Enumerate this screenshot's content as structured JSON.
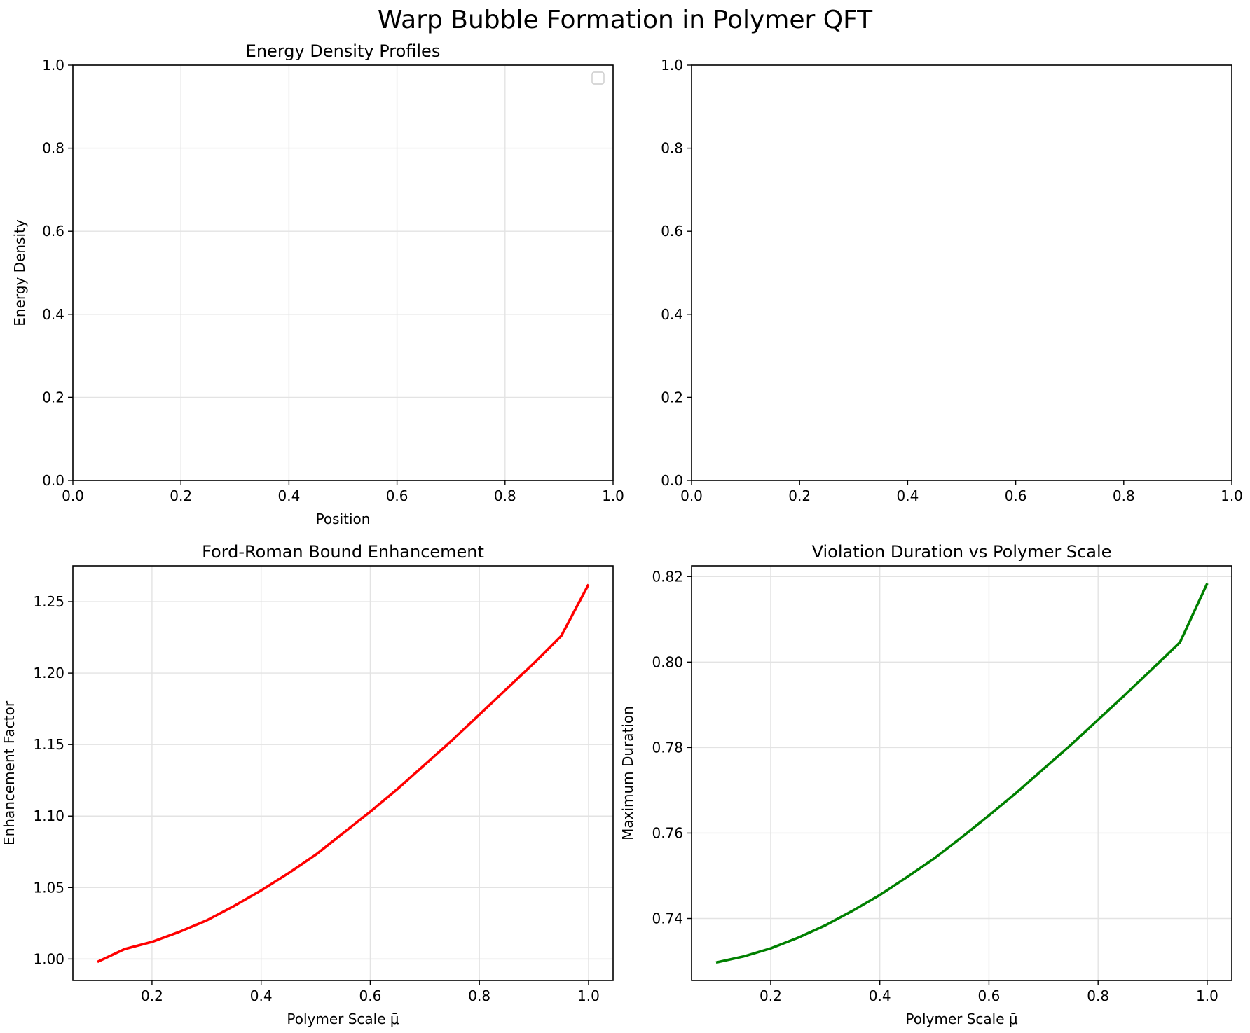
{
  "figure": {
    "suptitle": "Warp Bubble Formation in Polymer QFT"
  },
  "chart_data": [
    {
      "type": "line",
      "title": "Energy Density Profiles",
      "xlabel": "Position",
      "ylabel": "Energy Density",
      "xlim": [
        0.0,
        1.0
      ],
      "ylim": [
        0.0,
        1.0
      ],
      "xticks": [
        "0.0",
        "0.2",
        "0.4",
        "0.6",
        "0.8",
        "1.0"
      ],
      "yticks": [
        "0.0",
        "0.2",
        "0.4",
        "0.6",
        "0.8",
        "1.0"
      ],
      "grid": true,
      "legend": "top-right (empty)",
      "series": []
    },
    {
      "type": "line",
      "title": "",
      "xlabel": "",
      "ylabel": "",
      "xlim": [
        0.0,
        1.0
      ],
      "ylim": [
        0.0,
        1.0
      ],
      "xticks": [
        "0.0",
        "0.2",
        "0.4",
        "0.6",
        "0.8",
        "1.0"
      ],
      "yticks": [
        "0.0",
        "0.2",
        "0.4",
        "0.6",
        "0.8",
        "1.0"
      ],
      "grid": false,
      "series": []
    },
    {
      "type": "line",
      "title": "Ford-Roman Bound Enhancement",
      "xlabel": "Polymer Scale μ̄",
      "ylabel": "Enhancement Factor",
      "xlim": [
        0.055,
        1.045
      ],
      "ylim": [
        0.985,
        1.275
      ],
      "xticks": [
        "0.2",
        "0.4",
        "0.6",
        "0.8",
        "1.0"
      ],
      "yticks": [
        "1.00",
        "1.05",
        "1.10",
        "1.15",
        "1.20",
        "1.25"
      ],
      "grid": true,
      "series": [
        {
          "color": "#ff0000",
          "x": [
            0.1,
            0.15,
            0.2,
            0.25,
            0.3,
            0.35,
            0.4,
            0.45,
            0.5,
            0.55,
            0.6,
            0.65,
            0.7,
            0.75,
            0.8,
            0.85,
            0.9,
            0.95,
            1.0
          ],
          "y": [
            0.998,
            1.007,
            1.012,
            1.019,
            1.027,
            1.037,
            1.048,
            1.06,
            1.073,
            1.088,
            1.103,
            1.119,
            1.136,
            1.153,
            1.171,
            1.189,
            1.207,
            1.226,
            1.262
          ]
        }
      ]
    },
    {
      "type": "line",
      "title": "Violation Duration vs Polymer Scale",
      "xlabel": "Polymer Scale μ̄",
      "ylabel": "Maximum Duration",
      "xlim": [
        0.055,
        1.045
      ],
      "ylim": [
        0.7255,
        0.8225
      ],
      "xticks": [
        "0.2",
        "0.4",
        "0.6",
        "0.8",
        "1.0"
      ],
      "yticks": [
        "0.74",
        "0.76",
        "0.78",
        "0.80",
        "0.82"
      ],
      "grid": true,
      "series": [
        {
          "color": "#008000",
          "x": [
            0.1,
            0.15,
            0.2,
            0.25,
            0.3,
            0.35,
            0.4,
            0.45,
            0.5,
            0.55,
            0.6,
            0.65,
            0.7,
            0.75,
            0.8,
            0.85,
            0.9,
            0.95,
            1.0
          ],
          "y": [
            0.7297,
            0.7311,
            0.733,
            0.7355,
            0.7384,
            0.7418,
            0.7455,
            0.7497,
            0.7541,
            0.759,
            0.7641,
            0.7694,
            0.775,
            0.7806,
            0.7865,
            0.7924,
            0.7985,
            0.8046,
            0.8184
          ]
        }
      ]
    }
  ]
}
